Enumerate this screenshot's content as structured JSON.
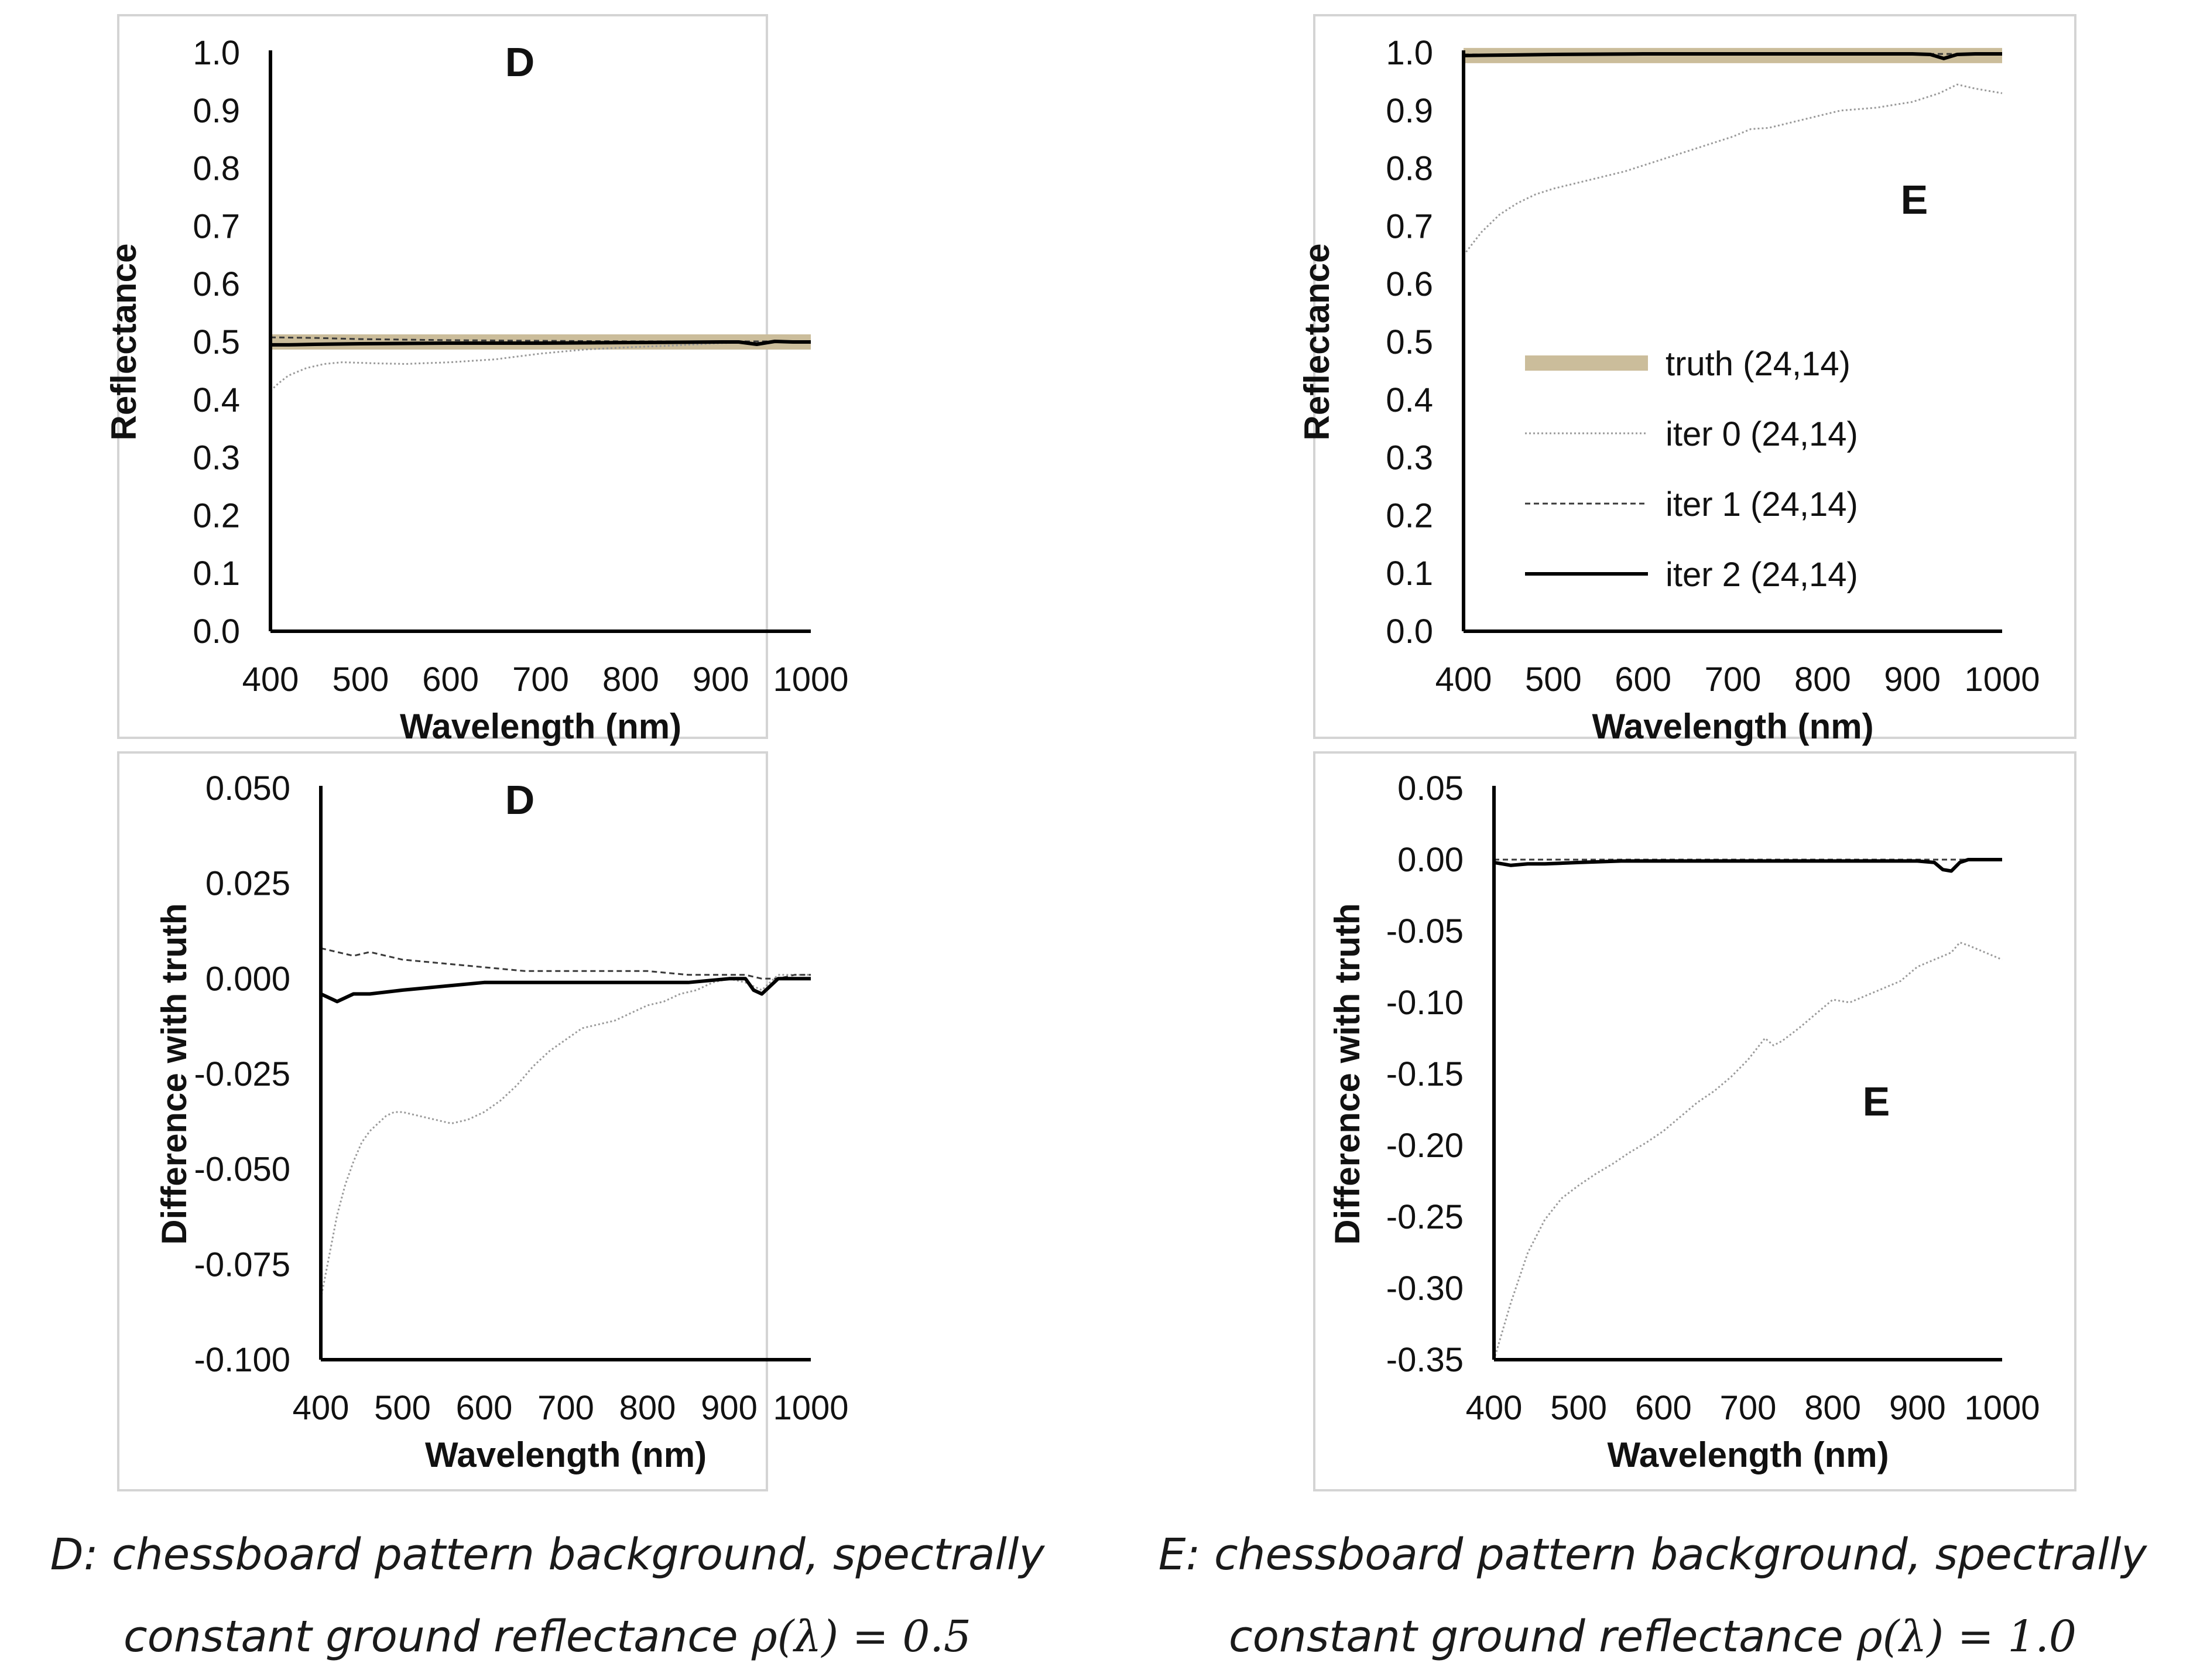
{
  "panels": [
    {
      "id": "D-reflectance",
      "letter": "D",
      "chart_data": {
        "type": "line",
        "xlabel": "Wavelength (nm)",
        "ylabel": "Reflectance",
        "xlim": [
          400,
          1000
        ],
        "ylim": [
          0.0,
          1.0
        ],
        "xticks": [
          400,
          500,
          600,
          700,
          800,
          900,
          1000
        ],
        "yticks": [
          0.0,
          0.1,
          0.2,
          0.3,
          0.4,
          0.5,
          0.6,
          0.7,
          0.8,
          0.9,
          1.0
        ],
        "ytick_labels": [
          "0.0",
          "0.1",
          "0.2",
          "0.3",
          "0.4",
          "0.5",
          "0.6",
          "0.7",
          "0.8",
          "0.9",
          "1.0"
        ],
        "series": [
          {
            "name": "truth (24,14)",
            "style": "truth",
            "x": [
              400,
              1000
            ],
            "y": [
              0.5,
              0.5
            ]
          },
          {
            "name": "iter 0 (24,14)",
            "style": "iter0",
            "x": [
              400,
              410,
              420,
              440,
              460,
              480,
              500,
              520,
              550,
              600,
              650,
              700,
              750,
              800,
              850,
              900,
              950,
              1000
            ],
            "y": [
              0.416,
              0.43,
              0.442,
              0.455,
              0.462,
              0.465,
              0.464,
              0.463,
              0.462,
              0.465,
              0.47,
              0.48,
              0.487,
              0.491,
              0.494,
              0.498,
              0.5,
              0.501
            ]
          },
          {
            "name": "iter 1 (24,14)",
            "style": "iter1",
            "x": [
              400,
              450,
              500,
              600,
              700,
              800,
              900,
              1000
            ],
            "y": [
              0.508,
              0.507,
              0.505,
              0.503,
              0.502,
              0.501,
              0.501,
              0.501
            ]
          },
          {
            "name": "iter 2 (24,14)",
            "style": "iter2",
            "x": [
              400,
              420,
              450,
              500,
              600,
              700,
              800,
              900,
              920,
              940,
              960,
              980,
              1000
            ],
            "y": [
              0.495,
              0.495,
              0.496,
              0.497,
              0.498,
              0.498,
              0.499,
              0.5,
              0.5,
              0.496,
              0.501,
              0.5,
              0.5
            ]
          }
        ]
      }
    },
    {
      "id": "E-reflectance",
      "letter": "E",
      "chart_data": {
        "type": "line",
        "xlabel": "Wavelength (nm)",
        "ylabel": "Reflectance",
        "xlim": [
          400,
          1000
        ],
        "ylim": [
          0.0,
          1.0
        ],
        "xticks": [
          400,
          500,
          600,
          700,
          800,
          900,
          1000
        ],
        "yticks": [
          0.0,
          0.1,
          0.2,
          0.3,
          0.4,
          0.5,
          0.6,
          0.7,
          0.8,
          0.9,
          1.0
        ],
        "ytick_labels": [
          "0.0",
          "0.1",
          "0.2",
          "0.3",
          "0.4",
          "0.5",
          "0.6",
          "0.7",
          "0.8",
          "0.9",
          "1.0"
        ],
        "series": [
          {
            "name": "truth (24,14)",
            "style": "truth",
            "x": [
              400,
              1000
            ],
            "y": [
              0.995,
              0.995
            ]
          },
          {
            "name": "iter 0 (24,14)",
            "style": "iter0",
            "x": [
              400,
              420,
              440,
              460,
              480,
              500,
              540,
              580,
              620,
              660,
              700,
              720,
              740,
              780,
              820,
              860,
              900,
              930,
              950,
              970,
              1000
            ],
            "y": [
              0.65,
              0.69,
              0.72,
              0.74,
              0.755,
              0.765,
              0.78,
              0.795,
              0.815,
              0.835,
              0.855,
              0.868,
              0.87,
              0.885,
              0.9,
              0.905,
              0.915,
              0.93,
              0.945,
              0.938,
              0.93
            ]
          },
          {
            "name": "iter 1 (24,14)",
            "style": "iter1",
            "x": [
              400,
              1000
            ],
            "y": [
              0.997,
              0.998
            ]
          },
          {
            "name": "iter 2 (24,14)",
            "style": "iter2",
            "x": [
              400,
              450,
              500,
              600,
              700,
              800,
              900,
              920,
              935,
              950,
              970,
              1000
            ],
            "y": [
              0.995,
              0.996,
              0.997,
              0.998,
              0.998,
              0.998,
              0.998,
              0.997,
              0.99,
              0.997,
              0.998,
              0.998
            ]
          }
        ],
        "legend": {
          "position": "center-right",
          "entries": [
            "truth (24,14)",
            "iter 0 (24,14)",
            "iter 1 (24,14)",
            "iter 2 (24,14)"
          ]
        }
      }
    },
    {
      "id": "D-difference",
      "letter": "D",
      "chart_data": {
        "type": "line",
        "xlabel": "Wavelength (nm)",
        "ylabel": "Difference with truth",
        "xlim": [
          400,
          1000
        ],
        "ylim": [
          -0.1,
          0.05
        ],
        "xticks": [
          400,
          500,
          600,
          700,
          800,
          900,
          1000
        ],
        "yticks": [
          -0.1,
          -0.075,
          -0.05,
          -0.025,
          0.0,
          0.025,
          0.05
        ],
        "ytick_labels": [
          "-0.100",
          "-0.075",
          "-0.050",
          "-0.025",
          "0.000",
          "0.025",
          "0.050"
        ],
        "series": [
          {
            "name": "iter 0 (24,14)",
            "style": "iter0",
            "x": [
              400,
              410,
              420,
              430,
              440,
              450,
              460,
              470,
              480,
              490,
              500,
              520,
              540,
              560,
              580,
              600,
              620,
              640,
              660,
              680,
              700,
              720,
              740,
              760,
              780,
              800,
              820,
              840,
              860,
              880,
              900,
              920,
              940,
              960,
              980,
              1000
            ],
            "y": [
              -0.084,
              -0.073,
              -0.062,
              -0.054,
              -0.048,
              -0.043,
              -0.04,
              -0.038,
              -0.036,
              -0.035,
              -0.035,
              -0.036,
              -0.037,
              -0.038,
              -0.037,
              -0.035,
              -0.032,
              -0.028,
              -0.023,
              -0.019,
              -0.016,
              -0.013,
              -0.012,
              -0.011,
              -0.009,
              -0.007,
              -0.006,
              -0.004,
              -0.003,
              -0.001,
              0.0,
              -0.001,
              -0.003,
              0.001,
              0.001,
              0.001
            ]
          },
          {
            "name": "iter 1 (24,14)",
            "style": "iter1",
            "x": [
              400,
              420,
              440,
              460,
              500,
              550,
              600,
              650,
              700,
              750,
              800,
              850,
              900,
              920,
              940,
              960,
              980,
              1000
            ],
            "y": [
              0.008,
              0.007,
              0.006,
              0.007,
              0.005,
              0.004,
              0.003,
              0.002,
              0.002,
              0.002,
              0.002,
              0.001,
              0.001,
              0.001,
              0.0,
              0.0,
              0.001,
              0.001
            ]
          },
          {
            "name": "iter 2 (24,14)",
            "style": "iter2",
            "x": [
              400,
              410,
              420,
              440,
              460,
              500,
              550,
              600,
              650,
              700,
              750,
              800,
              850,
              900,
              920,
              930,
              940,
              950,
              960,
              980,
              1000
            ],
            "y": [
              -0.004,
              -0.005,
              -0.006,
              -0.004,
              -0.004,
              -0.003,
              -0.002,
              -0.001,
              -0.001,
              -0.001,
              -0.001,
              -0.001,
              -0.001,
              0.0,
              0.0,
              -0.003,
              -0.004,
              -0.002,
              0.0,
              0.0,
              0.0
            ]
          }
        ]
      }
    },
    {
      "id": "E-difference",
      "letter": "E",
      "chart_data": {
        "type": "line",
        "xlabel": "Wavelength (nm)",
        "ylabel": "Difference with truth",
        "xlim": [
          400,
          1000
        ],
        "ylim": [
          -0.35,
          0.05
        ],
        "xticks": [
          400,
          500,
          600,
          700,
          800,
          900,
          1000
        ],
        "yticks": [
          -0.35,
          -0.3,
          -0.25,
          -0.2,
          -0.15,
          -0.1,
          -0.05,
          0.0,
          0.05
        ],
        "ytick_labels": [
          "-0.35",
          "-0.30",
          "-0.25",
          "-0.20",
          "-0.15",
          "-0.10",
          "-0.05",
          "0.00",
          "0.05"
        ],
        "series": [
          {
            "name": "iter 0 (24,14)",
            "style": "iter0",
            "x": [
              400,
              420,
              440,
              460,
              480,
              500,
              520,
              540,
              560,
              580,
              600,
              620,
              640,
              660,
              680,
              700,
              720,
              730,
              740,
              760,
              780,
              800,
              820,
              840,
              860,
              880,
              900,
              920,
              940,
              950,
              960,
              980,
              1000
            ],
            "y": [
              -0.35,
              -0.31,
              -0.275,
              -0.252,
              -0.237,
              -0.228,
              -0.22,
              -0.213,
              -0.205,
              -0.198,
              -0.19,
              -0.18,
              -0.17,
              -0.162,
              -0.152,
              -0.14,
              -0.125,
              -0.13,
              -0.127,
              -0.118,
              -0.108,
              -0.098,
              -0.1,
              -0.095,
              -0.09,
              -0.085,
              -0.075,
              -0.07,
              -0.065,
              -0.058,
              -0.06,
              -0.065,
              -0.07
            ]
          },
          {
            "name": "iter 1 (24,14)",
            "style": "iter1",
            "x": [
              400,
              1000
            ],
            "y": [
              0.0,
              0.0
            ]
          },
          {
            "name": "iter 2 (24,14)",
            "style": "iter2",
            "x": [
              400,
              410,
              420,
              440,
              460,
              500,
              550,
              600,
              650,
              700,
              750,
              800,
              850,
              900,
              920,
              930,
              940,
              950,
              960,
              980,
              1000
            ],
            "y": [
              -0.002,
              -0.003,
              -0.004,
              -0.003,
              -0.003,
              -0.002,
              -0.001,
              -0.001,
              -0.001,
              -0.001,
              -0.001,
              -0.001,
              -0.001,
              -0.001,
              -0.002,
              -0.007,
              -0.008,
              -0.002,
              0.0,
              0.0,
              0.0
            ]
          }
        ]
      }
    }
  ],
  "captions": {
    "d": {
      "text": "D: chessboard pattern background, spectrally",
      "line2": "constant ground reflectance",
      "math": "ρ(λ) = 0.5"
    },
    "e": {
      "text": "E: chessboard pattern background, spectrally",
      "line2": "constant ground reflectance",
      "math": "ρ(λ) = 1.0"
    }
  },
  "colors": {
    "truth": "#cbbd9b",
    "iter0": "#9a9a9a",
    "iter1": "#3a3a3a",
    "iter2": "#000000",
    "text": "#111111",
    "frame": "#d4d4d4"
  }
}
